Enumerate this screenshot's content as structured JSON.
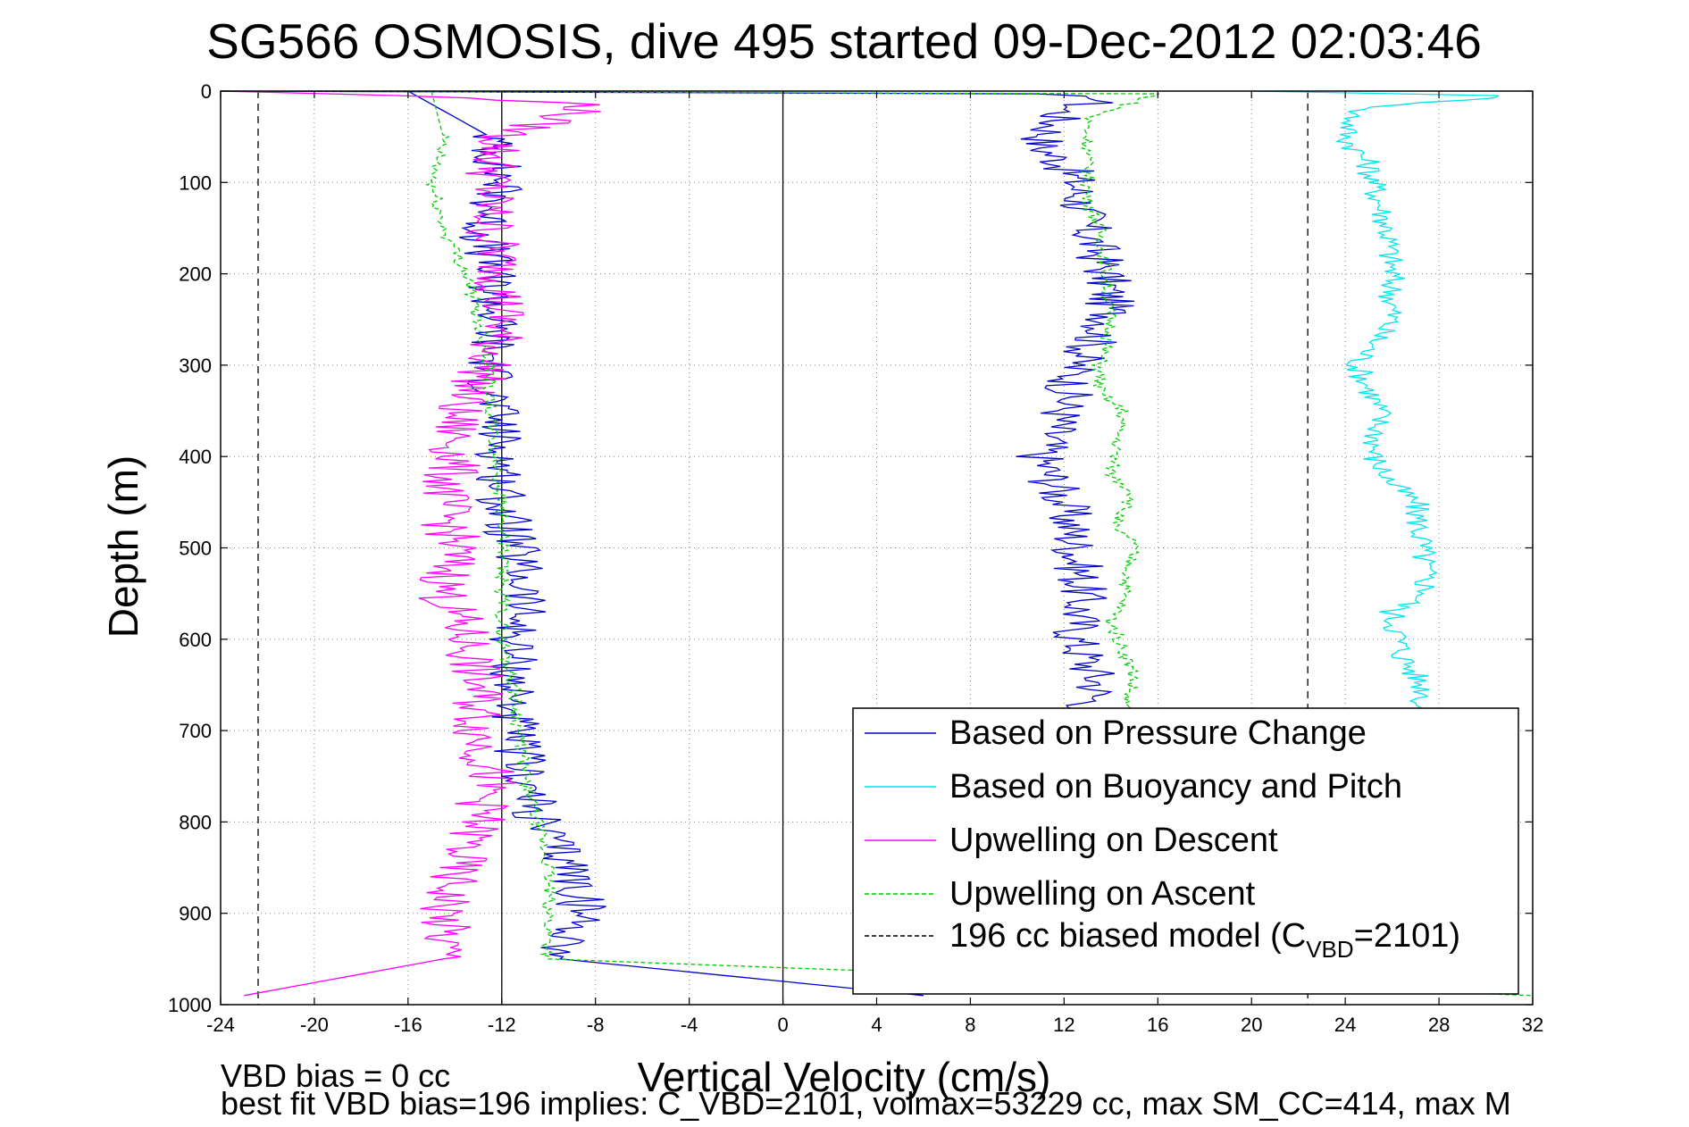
{
  "chart_data": {
    "type": "line",
    "title": "SG566 OSMOSIS, dive 495 started 09-Dec-2012 02:03:46",
    "xlabel": "Vertical Velocity (cm/s)",
    "ylabel": "Depth (m)",
    "xlim": [
      -24,
      32
    ],
    "ylim": [
      1000,
      0
    ],
    "y_reversed": true,
    "xticks": [
      -24,
      -20,
      -16,
      -12,
      -8,
      -4,
      0,
      4,
      8,
      12,
      16,
      20,
      24,
      28,
      32
    ],
    "yticks": [
      0,
      100,
      200,
      300,
      400,
      500,
      600,
      700,
      800,
      900,
      1000
    ],
    "grid": true,
    "legend_position": "bottom-right",
    "reference_lines": [
      {
        "x": -22.4,
        "style": "dashed",
        "color": "#000000"
      },
      {
        "x": 0,
        "style": "solid",
        "color": "#000000"
      },
      {
        "x": 22.4,
        "style": "dashed",
        "color": "#000000"
      },
      {
        "x": -12.0,
        "style": "solid",
        "color": "#000000"
      }
    ],
    "series": [
      {
        "name": "Based on Pressure Change",
        "color": "#0000cc",
        "style": "solid",
        "depth_profile": [
          {
            "depth": 0,
            "value": -24
          },
          {
            "depth": 3,
            "value": 10
          },
          {
            "depth": 8,
            "value": 14
          },
          {
            "depth": 20,
            "value": 12
          },
          {
            "depth": 40,
            "value": 11.5
          },
          {
            "depth": 60,
            "value": 11.0
          },
          {
            "depth": 80,
            "value": 12.0
          },
          {
            "depth": 100,
            "value": 12.5
          },
          {
            "depth": 150,
            "value": 13.0
          },
          {
            "depth": 200,
            "value": 13.8
          },
          {
            "depth": 250,
            "value": 14.0
          },
          {
            "depth": 300,
            "value": 12.5
          },
          {
            "depth": 350,
            "value": 12.0
          },
          {
            "depth": 400,
            "value": 11.0
          },
          {
            "depth": 450,
            "value": 12.0
          },
          {
            "depth": 500,
            "value": 12.5
          },
          {
            "depth": 550,
            "value": 12.8
          },
          {
            "depth": 600,
            "value": 12.5
          },
          {
            "depth": 650,
            "value": 13.5
          },
          {
            "depth": 680,
            "value": 13.0
          }
        ],
        "descent_profile": [
          {
            "depth": 0,
            "value": -16
          },
          {
            "depth": 50,
            "value": -12.5
          },
          {
            "depth": 100,
            "value": -12.0
          },
          {
            "depth": 150,
            "value": -12.8
          },
          {
            "depth": 200,
            "value": -12.5
          },
          {
            "depth": 250,
            "value": -12.3
          },
          {
            "depth": 300,
            "value": -12.5
          },
          {
            "depth": 350,
            "value": -12.3
          },
          {
            "depth": 400,
            "value": -12.0
          },
          {
            "depth": 450,
            "value": -12.0
          },
          {
            "depth": 500,
            "value": -11.5
          },
          {
            "depth": 550,
            "value": -11.0
          },
          {
            "depth": 600,
            "value": -11.5
          },
          {
            "depth": 650,
            "value": -11.5
          },
          {
            "depth": 700,
            "value": -11.5
          },
          {
            "depth": 750,
            "value": -11.0
          },
          {
            "depth": 800,
            "value": -10.5
          },
          {
            "depth": 850,
            "value": -9.0
          },
          {
            "depth": 900,
            "value": -8.5
          },
          {
            "depth": 950,
            "value": -9.5
          },
          {
            "depth": 990,
            "value": 6.0
          }
        ]
      },
      {
        "name": "Based on Buoyancy and Pitch",
        "color": "#00e5ee",
        "style": "solid",
        "depth_profile": [
          {
            "depth": 0,
            "value": 20
          },
          {
            "depth": 5,
            "value": 31
          },
          {
            "depth": 20,
            "value": 24.5
          },
          {
            "depth": 50,
            "value": 24.0
          },
          {
            "depth": 80,
            "value": 25.0
          },
          {
            "depth": 100,
            "value": 25.2
          },
          {
            "depth": 150,
            "value": 25.8
          },
          {
            "depth": 200,
            "value": 26.0
          },
          {
            "depth": 250,
            "value": 26.0
          },
          {
            "depth": 300,
            "value": 24.5
          },
          {
            "depth": 350,
            "value": 25.5
          },
          {
            "depth": 400,
            "value": 25.2
          },
          {
            "depth": 430,
            "value": 26.0
          },
          {
            "depth": 450,
            "value": 27.0
          },
          {
            "depth": 500,
            "value": 27.3
          },
          {
            "depth": 550,
            "value": 27.5
          },
          {
            "depth": 570,
            "value": 26.0
          },
          {
            "depth": 620,
            "value": 26.5
          },
          {
            "depth": 660,
            "value": 27.5
          },
          {
            "depth": 680,
            "value": 27.0
          }
        ],
        "descent_profile": []
      },
      {
        "name": "Upwelling on Descent",
        "color": "#ff00ff",
        "style": "solid",
        "depth_profile": [
          {
            "depth": 0,
            "value": -24
          },
          {
            "depth": 5,
            "value": -16
          },
          {
            "depth": 15,
            "value": -8.0
          },
          {
            "depth": 50,
            "value": -12.0
          },
          {
            "depth": 100,
            "value": -12.5
          },
          {
            "depth": 150,
            "value": -12.5
          },
          {
            "depth": 200,
            "value": -12.0
          },
          {
            "depth": 250,
            "value": -12.0
          },
          {
            "depth": 300,
            "value": -12.5
          },
          {
            "depth": 350,
            "value": -14.0
          },
          {
            "depth": 400,
            "value": -14.0
          },
          {
            "depth": 450,
            "value": -14.5
          },
          {
            "depth": 500,
            "value": -14.0
          },
          {
            "depth": 550,
            "value": -14.5
          },
          {
            "depth": 600,
            "value": -13.5
          },
          {
            "depth": 650,
            "value": -13.0
          },
          {
            "depth": 700,
            "value": -13.0
          },
          {
            "depth": 750,
            "value": -12.5
          },
          {
            "depth": 800,
            "value": -13.0
          },
          {
            "depth": 850,
            "value": -14.0
          },
          {
            "depth": 900,
            "value": -14.5
          },
          {
            "depth": 950,
            "value": -14.5
          },
          {
            "depth": 990,
            "value": -23.0
          }
        ]
      },
      {
        "name": "Upwelling on Ascent",
        "color": "#00cc00",
        "style": "dashed",
        "depth_profile": [
          {
            "depth": 0,
            "value": -24
          },
          {
            "depth": 3,
            "value": 16
          },
          {
            "depth": 30,
            "value": 13.0
          },
          {
            "depth": 80,
            "value": 13.0
          },
          {
            "depth": 120,
            "value": 13.0
          },
          {
            "depth": 150,
            "value": 13.5
          },
          {
            "depth": 200,
            "value": 13.8
          },
          {
            "depth": 260,
            "value": 14.0
          },
          {
            "depth": 300,
            "value": 13.5
          },
          {
            "depth": 330,
            "value": 13.5
          },
          {
            "depth": 350,
            "value": 14.5
          },
          {
            "depth": 420,
            "value": 14.0
          },
          {
            "depth": 440,
            "value": 15.0
          },
          {
            "depth": 480,
            "value": 14.0
          },
          {
            "depth": 490,
            "value": 15.0
          },
          {
            "depth": 560,
            "value": 14.5
          },
          {
            "depth": 580,
            "value": 14.0
          },
          {
            "depth": 640,
            "value": 15.0
          },
          {
            "depth": 680,
            "value": 14.5
          }
        ],
        "descent_profile": [
          {
            "depth": 0,
            "value": -15
          },
          {
            "depth": 50,
            "value": -14.5
          },
          {
            "depth": 100,
            "value": -15.0
          },
          {
            "depth": 150,
            "value": -14.5
          },
          {
            "depth": 200,
            "value": -13.5
          },
          {
            "depth": 250,
            "value": -13.0
          },
          {
            "depth": 300,
            "value": -12.5
          },
          {
            "depth": 350,
            "value": -12.5
          },
          {
            "depth": 400,
            "value": -12.3
          },
          {
            "depth": 450,
            "value": -12.0
          },
          {
            "depth": 500,
            "value": -12.0
          },
          {
            "depth": 550,
            "value": -12.0
          },
          {
            "depth": 600,
            "value": -12.0
          },
          {
            "depth": 650,
            "value": -11.5
          },
          {
            "depth": 700,
            "value": -11.3
          },
          {
            "depth": 750,
            "value": -11.0
          },
          {
            "depth": 800,
            "value": -10.5
          },
          {
            "depth": 850,
            "value": -10.0
          },
          {
            "depth": 900,
            "value": -10.0
          },
          {
            "depth": 950,
            "value": -10.0
          },
          {
            "depth": 990,
            "value": 32.0
          }
        ]
      },
      {
        "name": "196 cc biased model",
        "name_sub": "VBD",
        "name_pre": "196 cc biased model (C",
        "name_post": "=2101)",
        "color": "#000000",
        "style": "dashed",
        "depth_profile": []
      }
    ]
  },
  "footnotes": {
    "line1": "VBD bias = 0 cc",
    "line2": "best fit VBD bias=196 implies: C_VBD=2101, volmax=53229 cc, max SM_CC=414, max M"
  },
  "colors": {
    "pressure": "#0000cc",
    "buoyancy": "#00e5ee",
    "descent": "#ff00ff",
    "ascent": "#00cc00",
    "grid": "#888888"
  }
}
